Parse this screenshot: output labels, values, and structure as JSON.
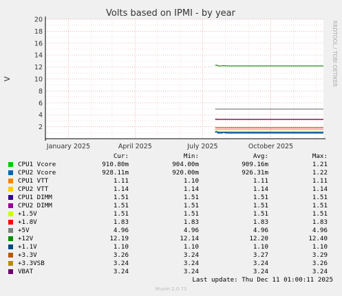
{
  "chart_data": {
    "type": "line",
    "title": "Volts based on IPMI - by year",
    "ylabel": "V",
    "side_label": "RRDTOOL / TOBI OETIKER",
    "ylim": [
      0,
      20
    ],
    "yticks": [
      2,
      4,
      6,
      8,
      10,
      12,
      14,
      16,
      18,
      20
    ],
    "xlim": [
      "2024-12-01",
      "2025-12-11"
    ],
    "xticks": [
      {
        "label": "January 2025",
        "date": "2025-01-01"
      },
      {
        "label": "April 2025",
        "date": "2025-04-01"
      },
      {
        "label": "July 2025",
        "date": "2025-07-01"
      },
      {
        "label": "October 2025",
        "date": "2025-10-01"
      }
    ],
    "data_start": "2025-07-18",
    "data_end": "2025-12-11",
    "columns": [
      "Cur:",
      "Min:",
      "Avg:",
      "Max:"
    ],
    "series": [
      {
        "name": "CPU1 Vcore",
        "color": "#00cc00",
        "cur": "910.80m",
        "min": "904.00m",
        "avg": "909.16m",
        "max": "1.21",
        "value": 0.91,
        "start_value": 1.21
      },
      {
        "name": "CPU2 Vcore",
        "color": "#0066b3",
        "cur": "928.11m",
        "min": "920.00m",
        "avg": "926.31m",
        "max": "1.22",
        "value": 0.93,
        "start_value": 1.22
      },
      {
        "name": "CPU1 VTT",
        "color": "#ff8000",
        "cur": "1.11",
        "min": "1.10",
        "avg": "1.11",
        "max": "1.11",
        "value": 1.11,
        "start_value": 1.11
      },
      {
        "name": "CPU2 VTT",
        "color": "#ffcc00",
        "cur": "1.14",
        "min": "1.14",
        "avg": "1.14",
        "max": "1.14",
        "value": 1.14,
        "start_value": 1.14
      },
      {
        "name": "CPU1 DIMM",
        "color": "#330099",
        "cur": "1.51",
        "min": "1.51",
        "avg": "1.51",
        "max": "1.51",
        "value": 1.51,
        "start_value": 1.51
      },
      {
        "name": "CPU2 DIMM",
        "color": "#990099",
        "cur": "1.51",
        "min": "1.51",
        "avg": "1.51",
        "max": "1.51",
        "value": 1.51,
        "start_value": 1.51
      },
      {
        "name": "+1.5V",
        "color": "#ccff00",
        "cur": "1.51",
        "min": "1.51",
        "avg": "1.51",
        "max": "1.51",
        "value": 1.51,
        "start_value": 1.51
      },
      {
        "name": "+1.8V",
        "color": "#ff0000",
        "cur": "1.83",
        "min": "1.83",
        "avg": "1.83",
        "max": "1.83",
        "value": 1.83,
        "start_value": 1.83
      },
      {
        "name": "+5V",
        "color": "#808080",
        "cur": "4.96",
        "min": "4.96",
        "avg": "4.96",
        "max": "4.96",
        "value": 4.96,
        "start_value": 4.96
      },
      {
        "name": "+12V",
        "color": "#008f00",
        "cur": "12.19",
        "min": "12.14",
        "avg": "12.20",
        "max": "12.40",
        "value": 12.19,
        "start_value": 12.3
      },
      {
        "name": "+1.1V",
        "color": "#00487d",
        "cur": "1.10",
        "min": "1.10",
        "avg": "1.10",
        "max": "1.10",
        "value": 1.1,
        "start_value": 1.1
      },
      {
        "name": "+3.3V",
        "color": "#b35a00",
        "cur": "3.26",
        "min": "3.24",
        "avg": "3.27",
        "max": "3.29",
        "value": 3.26,
        "start_value": 3.29
      },
      {
        "name": "+3.3VSB",
        "color": "#b38f00",
        "cur": "3.24",
        "min": "3.24",
        "avg": "3.24",
        "max": "3.26",
        "value": 3.24,
        "start_value": 3.26
      },
      {
        "name": "VBAT",
        "color": "#6b006b",
        "cur": "3.24",
        "min": "3.24",
        "avg": "3.24",
        "max": "3.24",
        "value": 3.24,
        "start_value": 3.24
      }
    ]
  },
  "last_update": "Last update: Thu Dec 11 01:00:11 2025",
  "footer": "Munin 2.0.73"
}
